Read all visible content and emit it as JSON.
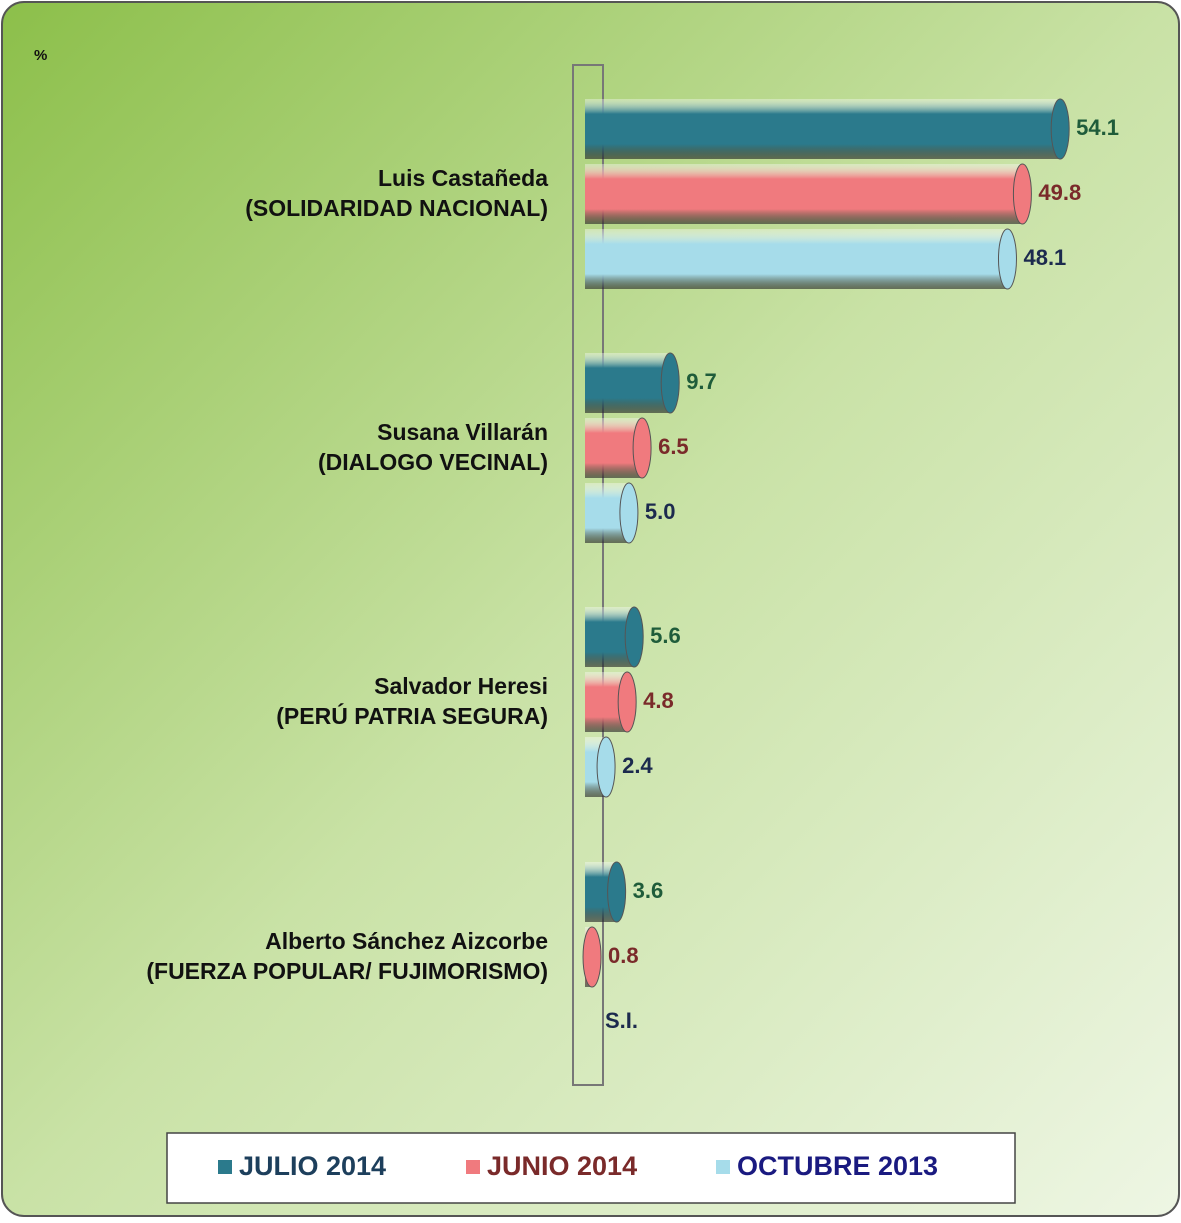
{
  "chart_data": {
    "type": "bar",
    "orientation": "horizontal",
    "y_label": "%",
    "categories": [
      [
        "Luis Castañeda",
        "(SOLIDARIDAD NACIONAL)"
      ],
      [
        "Susana Villarán",
        "(DIALOGO VECINAL)"
      ],
      [
        "Salvador Heresi",
        "(PERÚ PATRIA SEGURA)"
      ],
      [
        "Alberto Sánchez Aizcorbe",
        "(FUERZA POPULAR/ FUJIMORISMO)"
      ]
    ],
    "series": [
      {
        "name": "JULIO 2014",
        "color": "#2b7a8c",
        "label_color": "#1f5c3a",
        "legend_color": "#1d3f5c",
        "values": [
          54.1,
          9.7,
          5.6,
          3.6
        ]
      },
      {
        "name": "JUNIO 2014",
        "color": "#f07a7e",
        "label_color": "#7a2a2a",
        "legend_color": "#7a2a2a",
        "values": [
          49.8,
          6.5,
          4.8,
          0.8
        ]
      },
      {
        "name": "OCTUBRE 2013",
        "color": "#a6dcea",
        "label_color": "#1c2a4e",
        "legend_color": "#1a1a80",
        "values": [
          48.1,
          5.0,
          2.4,
          null
        ],
        "value_labels": [
          "48.1",
          "5.0",
          "2.4",
          "S.I."
        ]
      }
    ],
    "xlim": [
      0,
      60
    ],
    "legend": "bottom"
  }
}
